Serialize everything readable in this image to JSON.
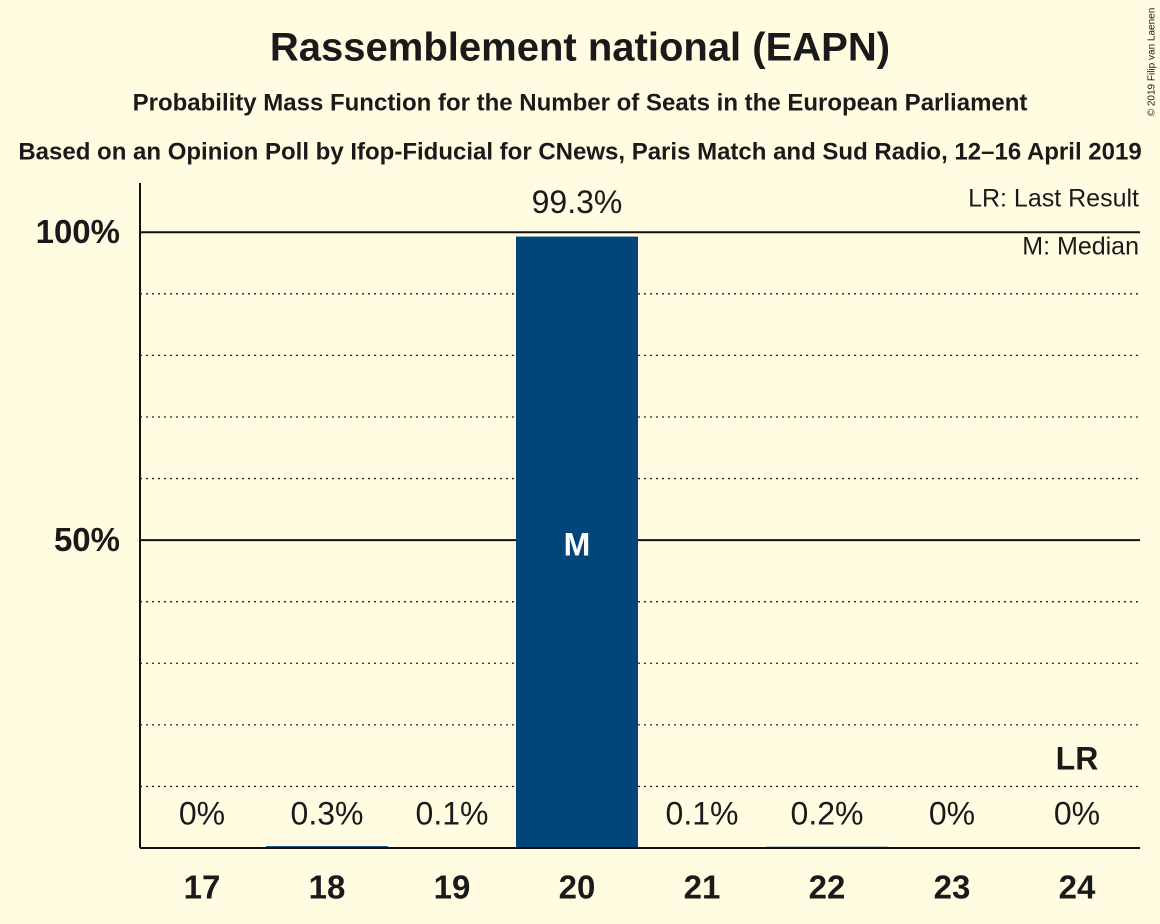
{
  "chart_data": {
    "type": "bar",
    "title": "Rassemblement national (EAPN)",
    "subtitle": "Probability Mass Function for the Number of Seats in the European Parliament",
    "source": "Based on an Opinion Poll by Ifop-Fiducial for CNews, Paris Match and Sud Radio, 12–16 April 2019",
    "copyright": "© 2019 Filip van Laenen",
    "categories": [
      "17",
      "18",
      "19",
      "20",
      "21",
      "22",
      "23",
      "24"
    ],
    "values": [
      0,
      0.3,
      0.1,
      99.3,
      0.1,
      0.2,
      0,
      0
    ],
    "value_labels": [
      "0%",
      "0.3%",
      "0.1%",
      "99.3%",
      "0.1%",
      "0.2%",
      "0%",
      "0%"
    ],
    "color": "#00467a",
    "ylim": [
      0,
      108
    ],
    "yticks": [
      {
        "value": 50,
        "label": "50%"
      },
      {
        "value": 100,
        "label": "100%"
      }
    ],
    "minor_gridlines": [
      10,
      20,
      30,
      40,
      60,
      70,
      80,
      90
    ],
    "median_index": 3,
    "median_label": "M",
    "last_result_index": 7,
    "last_result_label": "LR",
    "legend": [
      "LR: Last Result",
      "M: Median"
    ]
  }
}
